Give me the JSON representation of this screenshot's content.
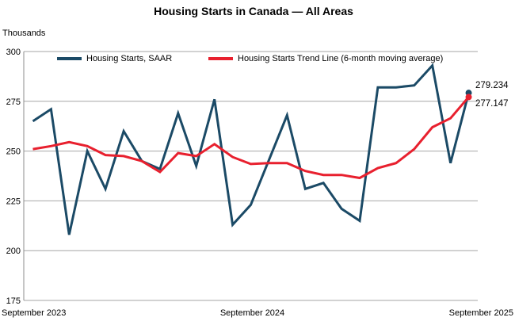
{
  "chart_data": {
    "type": "line",
    "title": "Housing Starts in Canada — All Areas",
    "ylabel": "Thousands",
    "xlabel": "",
    "ylim": [
      175,
      300
    ],
    "y_ticks": [
      175,
      200,
      225,
      250,
      275,
      300
    ],
    "x_tick_labels": [
      "September 2023",
      "September 2024",
      "September 2025"
    ],
    "grid": "horizontal",
    "legend_position": "top",
    "categories": [
      "Sep 2023",
      "Oct 2023",
      "Nov 2023",
      "Dec 2023",
      "Jan 2024",
      "Feb 2024",
      "Mar 2024",
      "Apr 2024",
      "May 2024",
      "Jun 2024",
      "Jul 2024",
      "Aug 2024",
      "Sep 2024",
      "Oct 2024",
      "Nov 2024",
      "Dec 2024",
      "Jan 2025",
      "Feb 2025",
      "Mar 2025",
      "Apr 2025",
      "May 2025",
      "Jun 2025",
      "Jul 2025",
      "Aug 2025",
      "Sep 2025"
    ],
    "series": [
      {
        "name": "Housing Starts, SAAR",
        "color": "#1B4A66",
        "values": [
          265,
          271,
          208,
          250,
          231,
          260,
          245,
          241,
          269,
          242.5,
          276,
          213,
          223,
          245.5,
          268,
          231,
          234,
          221,
          215,
          282,
          282,
          283,
          293,
          244,
          279.234
        ]
      },
      {
        "name": "Housing Starts Trend Line (6-month moving average)",
        "color": "#E8202E",
        "values": [
          251,
          252.5,
          254.5,
          252.5,
          248,
          247.5,
          245,
          239.5,
          249,
          247.5,
          253.5,
          247,
          243.5,
          244,
          244,
          240,
          238,
          238,
          236.5,
          241.5,
          244,
          251,
          262,
          266.5,
          277.147
        ]
      }
    ],
    "end_labels": {
      "saar": "279.234",
      "trend": "277.147"
    },
    "end_markers": true
  },
  "colors": {
    "gridline": "#A6A6A6",
    "axis": "#8C8C8C",
    "text": "#000000"
  }
}
